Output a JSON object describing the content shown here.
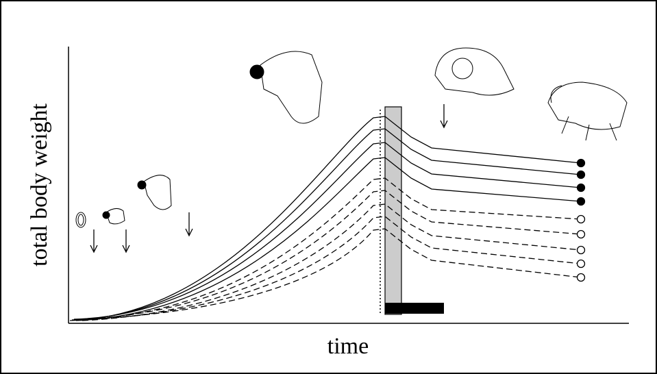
{
  "y_axis_label": "total body weight",
  "x_axis_label": "time"
}
